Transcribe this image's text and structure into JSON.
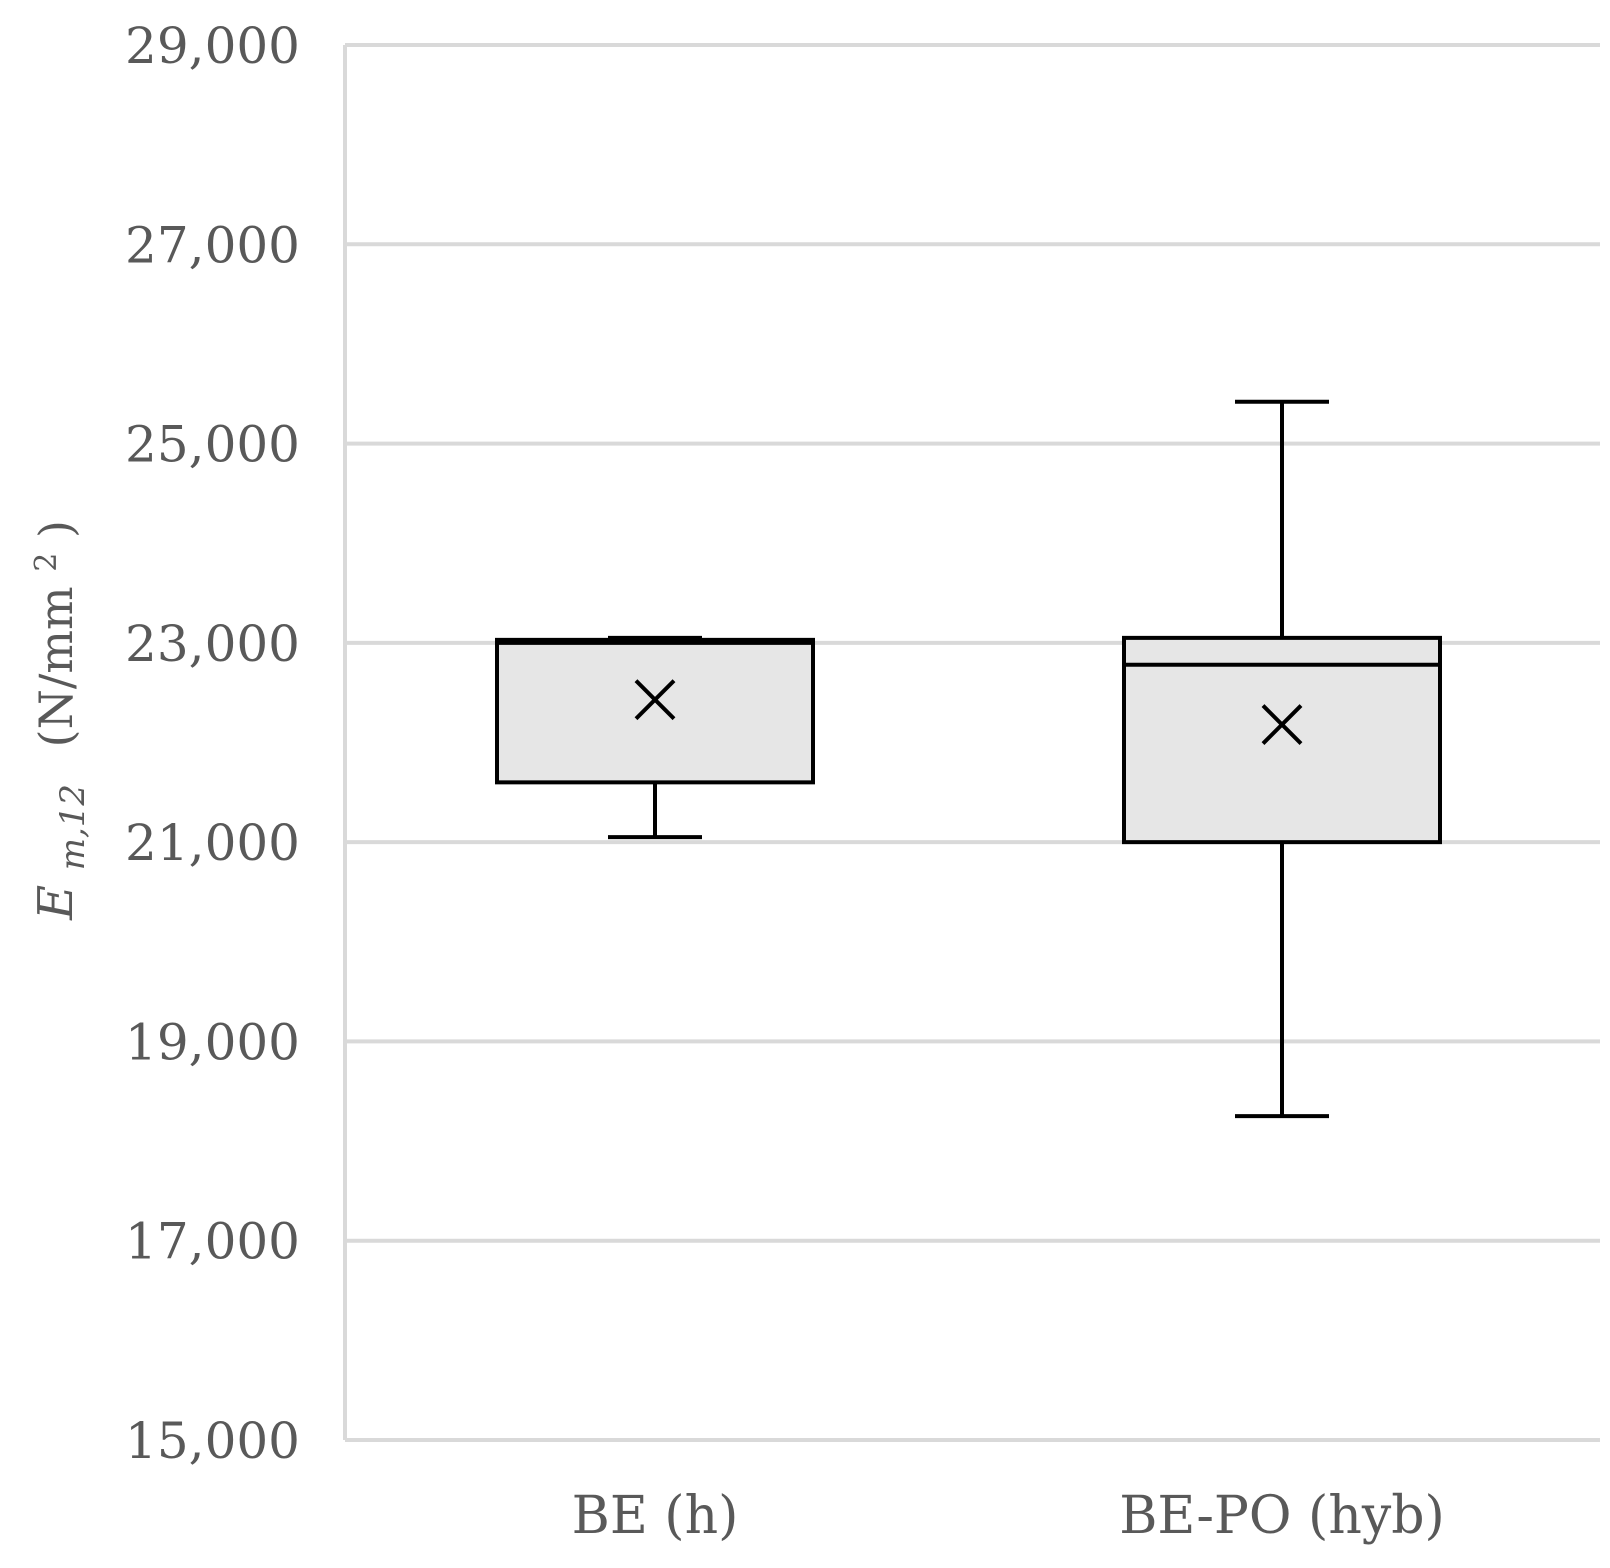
{
  "chart_data": {
    "type": "box",
    "ylabel": {
      "symbol": "E",
      "subscript": "m,12",
      "unit_prefix": "(N/mm",
      "unit_sup": "2",
      "unit_suffix": ")"
    },
    "ylim": [
      15000,
      29000
    ],
    "yticks": [
      15000,
      17000,
      19000,
      21000,
      23000,
      25000,
      27000,
      29000
    ],
    "ytick_labels": [
      "15,000",
      "17,000",
      "19,000",
      "21,000",
      "23,000",
      "25,000",
      "27,000",
      "29,000"
    ],
    "grid": true,
    "categories": [
      "BE (h)",
      "BE-PO (hyb)"
    ],
    "boxes": [
      {
        "category": "BE (h)",
        "min": 21050,
        "q1": 21600,
        "median": 23000,
        "q3": 23030,
        "max": 23050,
        "mean": 22430
      },
      {
        "category": "BE-PO (hyb)",
        "min": 18250,
        "q1": 21000,
        "median": 22780,
        "q3": 23050,
        "max": 25420,
        "mean": 22180
      }
    ],
    "colors": {
      "box_fill": "#e6e6e6",
      "box_stroke": "#000000",
      "grid": "#d9d9d9",
      "text": "#595959"
    }
  }
}
